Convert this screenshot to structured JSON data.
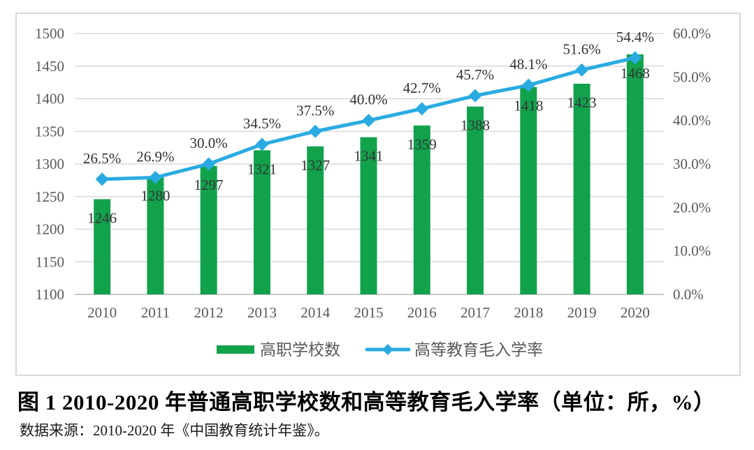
{
  "figure_caption": {
    "title": "图 1 2010-2020 年普通高职学校数和高等教育毛入学率（单位：所，%）",
    "source": "数据来源：2010-2020 年《中国教育统计年鉴》。"
  },
  "chart_data": {
    "type": "combo_bar_line",
    "categories": [
      "2010",
      "2011",
      "2012",
      "2013",
      "2014",
      "2015",
      "2016",
      "2017",
      "2018",
      "2019",
      "2020"
    ],
    "series": [
      {
        "name": "高职学校数",
        "type": "bar",
        "axis": "left",
        "color": "#12A24C",
        "values": [
          1246,
          1280,
          1297,
          1321,
          1327,
          1341,
          1359,
          1388,
          1418,
          1423,
          1468
        ],
        "labels": [
          "1246",
          "1280",
          "1297",
          "1321",
          "1327",
          "1341",
          "1359",
          "1388",
          "1418",
          "1423",
          "1468"
        ]
      },
      {
        "name": "高等教育毛入学率",
        "type": "line",
        "axis": "right",
        "color": "#29ABE2",
        "values": [
          26.5,
          26.9,
          30.0,
          34.5,
          37.5,
          40.0,
          42.7,
          45.7,
          48.1,
          51.6,
          54.4
        ],
        "labels": [
          "26.5%",
          "26.9%",
          "30.0%",
          "34.5%",
          "37.5%",
          "40.0%",
          "42.7%",
          "45.7%",
          "48.1%",
          "51.6%",
          "54.4%"
        ]
      }
    ],
    "left_axis": {
      "min": 1100,
      "max": 1500,
      "step": 50,
      "ticks": [
        "1100",
        "1150",
        "1200",
        "1250",
        "1300",
        "1350",
        "1400",
        "1450",
        "1500"
      ]
    },
    "right_axis": {
      "min": 0,
      "max": 60,
      "step": 10,
      "ticks": [
        "0.0%",
        "10.0%",
        "20.0%",
        "30.0%",
        "40.0%",
        "50.0%",
        "60.0%"
      ]
    },
    "grid": true,
    "legend_position": "bottom",
    "colors": {
      "grid": "#D9D9D9",
      "baseline": "#BFBFBF",
      "frame_border": "#D9D9D9",
      "axis_text": "#595959",
      "data_label": "#333333",
      "legend_text": "#595959"
    }
  }
}
